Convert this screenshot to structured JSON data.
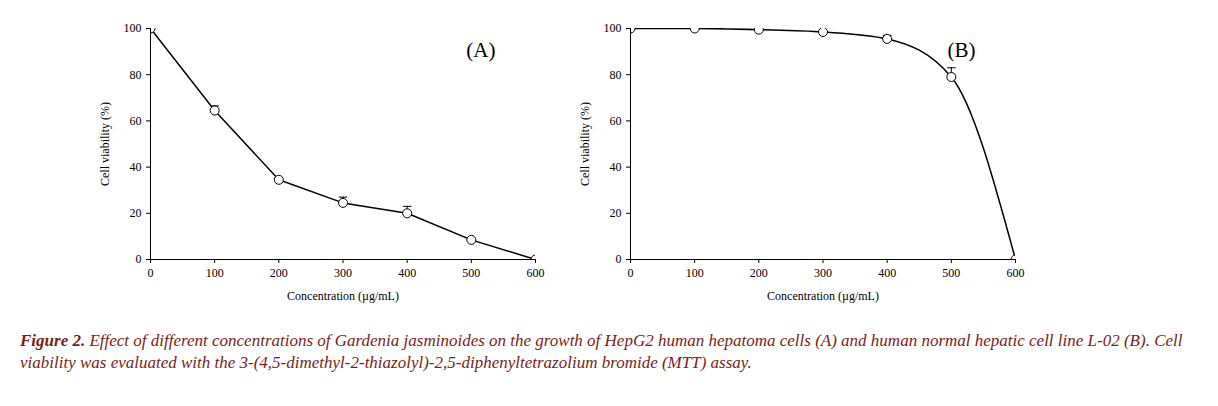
{
  "chart_data": [
    {
      "type": "line",
      "annotation": "(A)",
      "x_label": "Concentration (µg/mL)",
      "y_label": "Cell viability (%)",
      "x": [
        0,
        100,
        200,
        300,
        400,
        500,
        600
      ],
      "series": [
        {
          "name": "HepG2",
          "color": "#000000",
          "marker": "circle",
          "line_style": "solid",
          "values": [
            100,
            64.5,
            34.5,
            24.5,
            20,
            8.5,
            0
          ],
          "errors": [
            0,
            2,
            1,
            2.5,
            3,
            0.5,
            0
          ]
        }
      ],
      "xlim": [
        0,
        600
      ],
      "xticks": [
        0,
        100,
        200,
        300,
        400,
        500,
        600
      ],
      "ylim": [
        0,
        100
      ],
      "yticks": [
        0,
        20,
        40,
        60,
        80,
        100
      ],
      "grid": false
    },
    {
      "type": "line",
      "annotation": "(B)",
      "x_label": "Concentration (µg/mL)",
      "y_label": "Cell viability (%)",
      "x": [
        0,
        100,
        200,
        300,
        400,
        500,
        600
      ],
      "series": [
        {
          "name": "L-02",
          "color": "#000000",
          "marker": "circle",
          "line_style": "smooth",
          "values": [
            100,
            100,
            99.5,
            98.5,
            95.5,
            79,
            0
          ],
          "errors": [
            0,
            0,
            0,
            0.5,
            1.5,
            4,
            0
          ]
        }
      ],
      "xlim": [
        0,
        600
      ],
      "xticks": [
        0,
        100,
        200,
        300,
        400,
        500,
        600
      ],
      "ylim": [
        0,
        100
      ],
      "yticks": [
        0,
        20,
        40,
        60,
        80,
        100
      ],
      "grid": false
    }
  ],
  "caption": {
    "label": "Figure 2.",
    "text": "Effect of different concentrations of Gardenia jasminoides on the growth of HepG2 human hepatoma cells (A) and human normal hepatic cell line L-02 (B). Cell viability was evaluated with the 3-(4,5-dimethyl-2-thiazolyl)-2,5-diphenyltetrazolium bromide (MTT) assay."
  }
}
